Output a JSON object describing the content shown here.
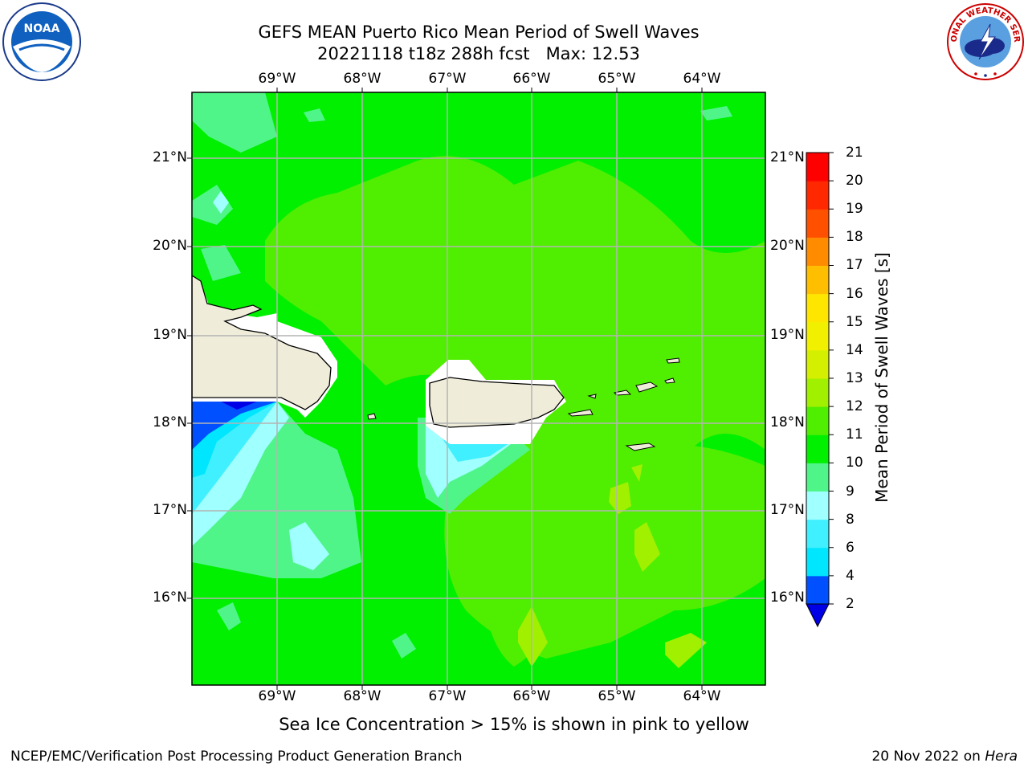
{
  "header": {
    "title_line1": "GEFS MEAN Puerto Rico Mean Period of Swell Waves",
    "title_line2": "20221118 t18z 288h fcst   Max: 12.53"
  },
  "logos": {
    "left_name": "NOAA",
    "left_ring_text": "NATIONAL OCEANIC AND ATMOSPHERIC ADMINISTRATION · U.S. DEPARTMENT OF COMMERCE",
    "right_ring_text": "NATIONAL WEATHER SERVICE"
  },
  "map": {
    "lon_labels": [
      "69°W",
      "68°W",
      "67°W",
      "66°W",
      "65°W",
      "64°W"
    ],
    "lat_labels": [
      "21°N",
      "20°N",
      "19°N",
      "18°N",
      "17°N",
      "16°N"
    ],
    "land_color": "#efedd9",
    "coast_color": "#000000",
    "grid_color": "#b4b4b4"
  },
  "colorbar": {
    "label": "Mean Period of Swell Waves [s]",
    "ticks": [
      "2",
      "4",
      "6",
      "8",
      "9",
      "10",
      "11",
      "12",
      "13",
      "14",
      "15",
      "16",
      "17",
      "18",
      "19",
      "20",
      "21"
    ],
    "colors": [
      "#0050ff",
      "#00e6ff",
      "#40f0ff",
      "#a0ffff",
      "#50f58a",
      "#00f000",
      "#50ee00",
      "#a0f000",
      "#d4f000",
      "#f0f000",
      "#ffe600",
      "#ffbe00",
      "#ff8c00",
      "#ff5000",
      "#ff2800",
      "#ff0000"
    ],
    "under_color": "#0000e6"
  },
  "note": "Sea Ice Concentration > 15% is shown in pink to yellow",
  "footer": {
    "left": "NCEP/EMC/Verification Post Processing Product Generation Branch",
    "date": "20 Nov 2022 on",
    "machine": "Hera"
  }
}
